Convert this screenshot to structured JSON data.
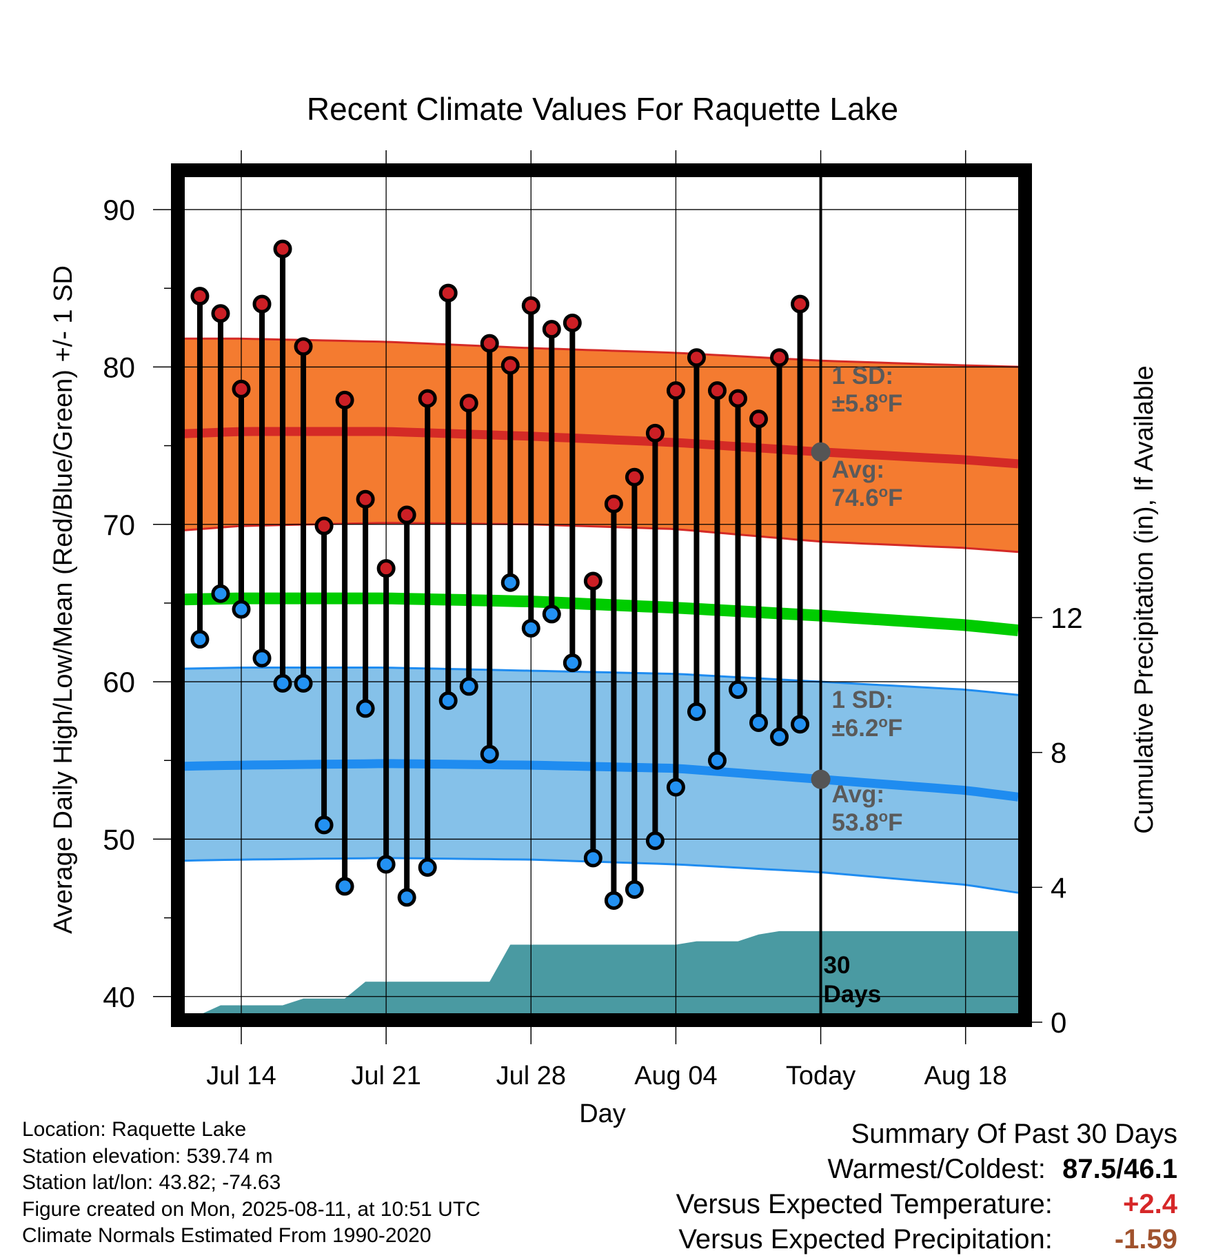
{
  "chart_data": {
    "type": "line",
    "title": "Recent Climate Values For Raquette Lake",
    "xlabel": "Day",
    "ylabel": "Average Daily High/Low/Mean (Red/Blue/Green) +/- 1 SD",
    "y2label": "Cumulative Precipitation (in), If Available",
    "x_tick_labels": [
      "Jul 14",
      "Jul 21",
      "Jul 28",
      "Aug 04",
      "Today",
      "Aug 18"
    ],
    "y_ticks": [
      40,
      50,
      60,
      70,
      80,
      90
    ],
    "y2_ticks": [
      0,
      4,
      8,
      12
    ],
    "ylim": [
      38.5,
      92.5
    ],
    "y2lim": [
      0,
      16
    ],
    "grid": true,
    "colors": {
      "high_band": "#f47b30",
      "high_line": "#d42a26",
      "high_marker": "#cc1f25",
      "low_band": "#85c1e9",
      "low_line": "#1f8cf0",
      "low_marker": "#2391f2",
      "mean_line": "#00cc00",
      "precip": "#4a9aa2",
      "today_marker": "#555555",
      "label_gray": "#5a5a5a"
    },
    "observed_days": [
      "Jul 12",
      "Jul 13",
      "Jul 14",
      "Jul 15",
      "Jul 16",
      "Jul 17",
      "Jul 18",
      "Jul 19",
      "Jul 20",
      "Jul 21",
      "Jul 22",
      "Jul 23",
      "Jul 24",
      "Jul 25",
      "Jul 26",
      "Jul 27",
      "Jul 28",
      "Jul 29",
      "Jul 30",
      "Jul 31",
      "Aug 01",
      "Aug 02",
      "Aug 03",
      "Aug 04",
      "Aug 05",
      "Aug 06",
      "Aug 07",
      "Aug 08",
      "Aug 09",
      "Aug 10"
    ],
    "observed_high": [
      84.5,
      83.4,
      78.6,
      84.0,
      87.5,
      81.3,
      69.9,
      77.9,
      71.6,
      67.2,
      70.6,
      78.0,
      84.7,
      77.7,
      81.5,
      80.1,
      83.9,
      82.4,
      82.8,
      66.4,
      71.3,
      73.0,
      75.8,
      78.5,
      80.6,
      78.5,
      78.0,
      76.7,
      80.6,
      84.0
    ],
    "observed_low": [
      62.7,
      65.6,
      64.6,
      61.5,
      59.9,
      59.9,
      50.9,
      47.0,
      58.3,
      48.4,
      46.3,
      48.2,
      58.8,
      59.7,
      55.4,
      66.3,
      63.4,
      64.3,
      61.2,
      48.8,
      46.1,
      46.8,
      49.9,
      53.3,
      58.1,
      55.0,
      59.5,
      57.4,
      56.5,
      57.3
    ],
    "normal_days": [
      "Jul 10",
      "Jul 14",
      "Jul 21",
      "Jul 28",
      "Aug 04",
      "Aug 11",
      "Aug 18",
      "Aug 21"
    ],
    "normal_high_avg": [
      75.7,
      75.9,
      75.9,
      75.6,
      75.2,
      74.6,
      74.1,
      73.8
    ],
    "normal_high_upper": [
      81.8,
      81.8,
      81.6,
      81.2,
      80.9,
      80.4,
      80.1,
      80.0
    ],
    "normal_high_lower": [
      69.5,
      69.9,
      70.1,
      70.0,
      69.7,
      68.9,
      68.5,
      68.2
    ],
    "normal_mean_avg": [
      65.2,
      65.3,
      65.3,
      65.1,
      64.7,
      64.2,
      63.6,
      63.2
    ],
    "normal_low_avg": [
      54.6,
      54.7,
      54.8,
      54.7,
      54.5,
      53.8,
      53.1,
      52.6
    ],
    "normal_low_upper": [
      60.8,
      60.9,
      60.9,
      60.7,
      60.5,
      60.0,
      59.5,
      59.1
    ],
    "normal_low_lower": [
      48.6,
      48.7,
      48.8,
      48.7,
      48.4,
      47.9,
      47.1,
      46.5
    ],
    "precip_days": [
      "Jul 11",
      "Jul 13",
      "Jul 14",
      "Jul 16",
      "Jul 17",
      "Jul 18",
      "Jul 19",
      "Jul 20",
      "Jul 21",
      "Jul 25",
      "Jul 26",
      "Jul 27",
      "Jul 30",
      "Aug 04",
      "Aug 05",
      "Aug 07",
      "Aug 08",
      "Aug 09",
      "Aug 21"
    ],
    "precip_cumulative": [
      0.0,
      0.5,
      0.5,
      0.5,
      0.7,
      0.7,
      0.7,
      1.2,
      1.2,
      1.2,
      1.2,
      2.3,
      2.3,
      2.3,
      2.4,
      2.4,
      2.6,
      2.7,
      2.7
    ],
    "annotations": {
      "high_sd_title": "1 SD:",
      "high_sd_value": "±5.8",
      "high_avg_title": "Avg:",
      "high_avg_value": "74.6",
      "low_sd_title": "1 SD:",
      "low_sd_value": "±6.2",
      "low_avg_title": "Avg:",
      "low_avg_value": "53.8",
      "degree_mark": "o",
      "unit_letter": "F",
      "days_count": "30",
      "days_word": "Days"
    }
  },
  "info": {
    "location": "Location: Raquette Lake",
    "elevation": "Station elevation: 539.74 m",
    "latlon": "Station lat/lon: 43.82; -74.63",
    "created": "Figure created on Mon, 2025-08-11, at 10:51 UTC",
    "normals": "Climate Normals Estimated From 1990-2020"
  },
  "summary": {
    "title": "Summary Of Past 30 Days",
    "warmest_label": "Warmest/Coldest:",
    "warmest_value": "87.5/46.1",
    "temp_label": "Versus Expected Temperature:",
    "temp_value": "+2.4",
    "temp_color": "#d62728",
    "precip_label": "Versus Expected Precipitation:",
    "precip_value": "-1.59",
    "precip_color": "#a0522d"
  }
}
